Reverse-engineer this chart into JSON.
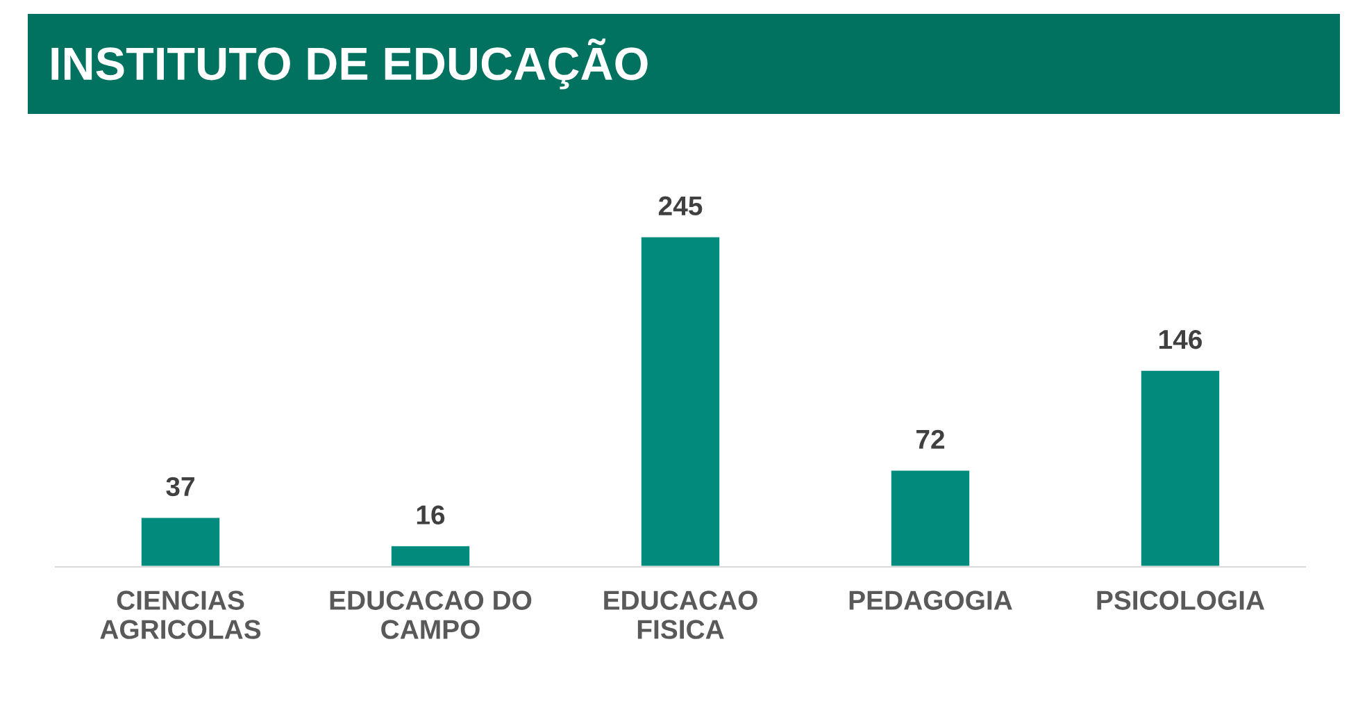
{
  "chart_data": {
    "type": "bar",
    "title": "INSTITUTO DE EDUCAÇÃO",
    "categories": [
      "CIENCIAS\nAGRICOLAS",
      "EDUCACAO DO\nCAMPO",
      "EDUCACAO\nFISICA",
      "PEDAGOGIA",
      "PSICOLOGIA"
    ],
    "values": [
      37,
      16,
      245,
      72,
      146
    ],
    "color": "#008b7d",
    "data_labels": true,
    "grid": false,
    "legend": false
  }
}
